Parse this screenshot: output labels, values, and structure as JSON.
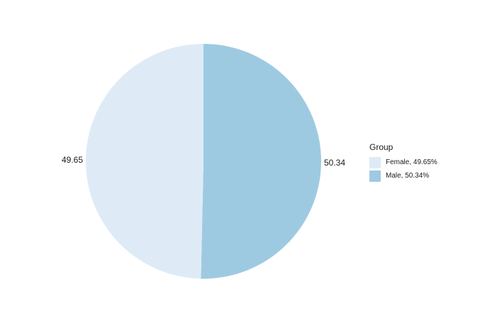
{
  "chart_data": {
    "type": "pie",
    "legend_title": "Group",
    "legend_position": "right",
    "slices": [
      {
        "name": "Female",
        "value": 49.65,
        "label": "49.65",
        "legend_label": "Female, 49.65%",
        "color": "#deebf7"
      },
      {
        "name": "Male",
        "value": 50.34,
        "label": "50.34",
        "legend_label": "Male, 50.34%",
        "color": "#9ecae1"
      }
    ]
  }
}
